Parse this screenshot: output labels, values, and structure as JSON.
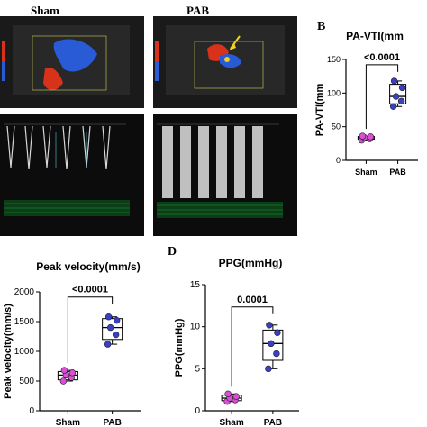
{
  "ultrasound": {
    "col_sham_title": "Sham",
    "col_pab_title": "PAB"
  },
  "panel_letters": {
    "B": "B",
    "D": "D"
  },
  "colors": {
    "sham_marker": "#d94fd6",
    "pab_marker": "#3b3fc4",
    "doppler_blue": "#2a5bd7",
    "doppler_red": "#d8321b",
    "spectral_green": "#1f9a3a",
    "arrow_yellow": "#f2d21a"
  },
  "chart_data": [
    {
      "id": "B",
      "type": "box",
      "title": "PA-VTI(mm",
      "ylabel": "PA-VTI(mm",
      "categories": [
        "Sham",
        "PAB"
      ],
      "ylim": [
        0,
        150
      ],
      "yticks": [
        0,
        50,
        100,
        150
      ],
      "series": [
        {
          "name": "Sham",
          "values": [
            30,
            32,
            34,
            35,
            36
          ]
        },
        {
          "name": "PAB",
          "values": [
            80,
            88,
            95,
            108,
            118
          ]
        }
      ],
      "box": [
        {
          "min": 30,
          "q1": 31.5,
          "median": 34,
          "q3": 35.5,
          "max": 36
        },
        {
          "min": 80,
          "q1": 84,
          "median": 95,
          "q3": 113,
          "max": 118
        }
      ],
      "annotation": "<0.0001",
      "grid": false
    },
    {
      "id": "C",
      "type": "box",
      "title": "Peak velocity(mm/s)",
      "ylabel": "Peak velocity(mm/s)",
      "categories": [
        "Sham",
        "PAB"
      ],
      "ylim": [
        0,
        2000
      ],
      "yticks": [
        0,
        500,
        1000,
        1500,
        2000
      ],
      "series": [
        {
          "name": "Sham",
          "values": [
            500,
            560,
            600,
            640,
            680
          ]
        },
        {
          "name": "PAB",
          "values": [
            1120,
            1280,
            1400,
            1520,
            1580
          ]
        }
      ],
      "box": [
        {
          "min": 500,
          "q1": 520,
          "median": 600,
          "q3": 660,
          "max": 680
        },
        {
          "min": 1120,
          "q1": 1200,
          "median": 1400,
          "q3": 1550,
          "max": 1580
        }
      ],
      "annotation": "<0.0001",
      "grid": false
    },
    {
      "id": "D",
      "type": "box",
      "title": "PPG(mmHg)",
      "ylabel": "PPG(mmHg)",
      "categories": [
        "Sham",
        "PAB"
      ],
      "ylim": [
        0,
        15
      ],
      "yticks": [
        0,
        5,
        10,
        15
      ],
      "series": [
        {
          "name": "Sham",
          "values": [
            1.1,
            1.3,
            1.5,
            1.7,
            2.0
          ]
        },
        {
          "name": "PAB",
          "values": [
            5.0,
            6.8,
            8.0,
            9.3,
            10.2
          ]
        }
      ],
      "box": [
        {
          "min": 1.1,
          "q1": 1.2,
          "median": 1.5,
          "q3": 1.85,
          "max": 2.0
        },
        {
          "min": 5.0,
          "q1": 6.0,
          "median": 8.0,
          "q3": 9.6,
          "max": 10.2
        }
      ],
      "annotation": "0.0001",
      "grid": false
    }
  ]
}
